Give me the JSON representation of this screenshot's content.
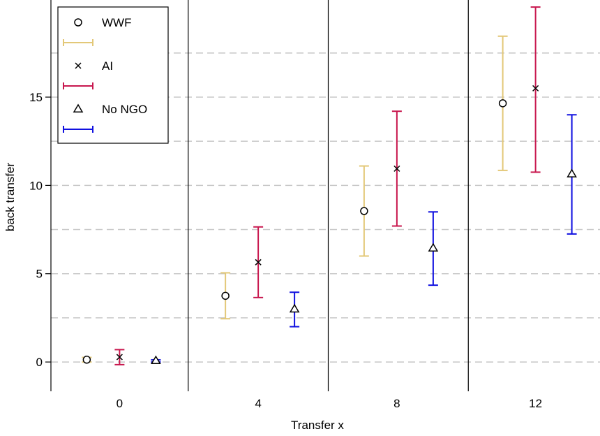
{
  "chart_data": {
    "type": "scatter",
    "subtype": "point-with-error-bars",
    "title": "",
    "xlabel": "Transfer x",
    "ylabel": "back transfer",
    "categories": [
      "0",
      "4",
      "8",
      "12"
    ],
    "ylim": [
      -1.5,
      20.5
    ],
    "yticks": [
      0,
      5,
      10,
      15
    ],
    "grid": {
      "horizontal_dashed_at": [
        0,
        2.5,
        5,
        7.5,
        10,
        12.5,
        15,
        17.5
      ],
      "vertical_separators": true
    },
    "legend_position": "top-left",
    "series": [
      {
        "name": "WWF",
        "marker": "circle",
        "error_bar_color": "#e3c878",
        "values": [
          0.13,
          3.75,
          8.55,
          14.65
        ],
        "lower": [
          0.0,
          2.45,
          6.0,
          10.85
        ],
        "upper": [
          0.26,
          5.05,
          11.1,
          18.45
        ]
      },
      {
        "name": "AI",
        "marker": "x",
        "error_bar_color": "#c8174e",
        "values": [
          0.28,
          5.65,
          10.95,
          15.5
        ],
        "lower": [
          -0.15,
          3.65,
          7.7,
          10.75
        ],
        "upper": [
          0.7,
          7.65,
          14.2,
          20.1
        ]
      },
      {
        "name": "No NGO",
        "marker": "triangle",
        "error_bar_color": "#1010e0",
        "values": [
          0.08,
          3.0,
          6.45,
          10.65
        ],
        "lower": [
          0.0,
          2.0,
          4.35,
          7.25
        ],
        "upper": [
          0.12,
          3.95,
          8.5,
          14.0
        ]
      }
    ]
  }
}
